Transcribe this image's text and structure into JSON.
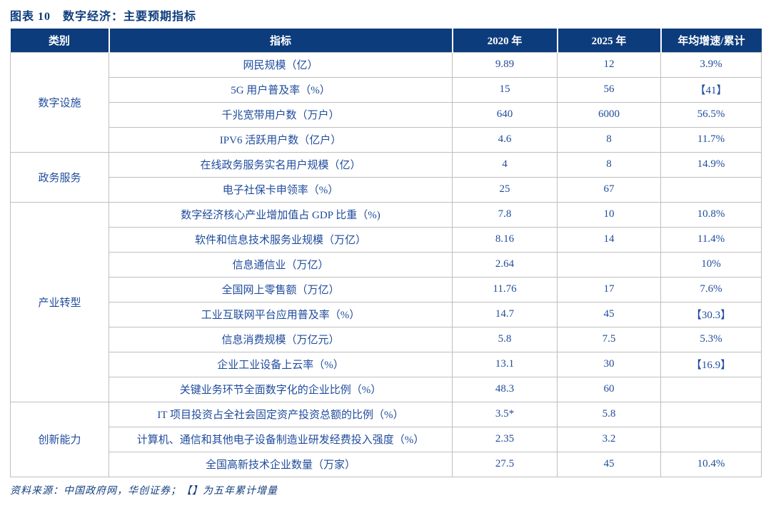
{
  "page": {
    "title": "图表 10　数字经济：主要预期指标",
    "source_note": "资料来源：中国政府网，华创证券；【】为五年累计增量"
  },
  "colors": {
    "header_bg": "#0d3c7c",
    "header_text": "#ffffff",
    "body_text": "#1f4c9c",
    "title_text": "#0d3c7c",
    "border": "#bfbfbf"
  },
  "table": {
    "headers": [
      "类别",
      "指标",
      "2020 年",
      "2025 年",
      "年均增速/累计"
    ],
    "groups": [
      {
        "category": "数字设施",
        "rows": [
          {
            "indicator": "网民规模（亿）",
            "y2020": "9.89",
            "y2025": "12",
            "growth": "3.9%"
          },
          {
            "indicator": "5G 用户普及率（%）",
            "y2020": "15",
            "y2025": "56",
            "growth": "【41】"
          },
          {
            "indicator": "千兆宽带用户数（万户）",
            "y2020": "640",
            "y2025": "6000",
            "growth": "56.5%"
          },
          {
            "indicator": "IPV6 活跃用户数（亿户）",
            "y2020": "4.6",
            "y2025": "8",
            "growth": "11.7%"
          }
        ]
      },
      {
        "category": "政务服务",
        "rows": [
          {
            "indicator": "在线政务服务实名用户规模（亿）",
            "y2020": "4",
            "y2025": "8",
            "growth": "14.9%"
          },
          {
            "indicator": "电子社保卡申领率（%）",
            "y2020": "25",
            "y2025": "67",
            "growth": ""
          }
        ]
      },
      {
        "category": "产业转型",
        "rows": [
          {
            "indicator": "数字经济核心产业增加值占 GDP 比重（%)",
            "y2020": "7.8",
            "y2025": "10",
            "growth": "10.8%"
          },
          {
            "indicator": "软件和信息技术服务业规模（万亿）",
            "y2020": "8.16",
            "y2025": "14",
            "growth": "11.4%"
          },
          {
            "indicator": "信息通信业（万亿）",
            "y2020": "2.64",
            "y2025": "",
            "growth": "10%"
          },
          {
            "indicator": "全国网上零售额（万亿）",
            "y2020": "11.76",
            "y2025": "17",
            "growth": "7.6%"
          },
          {
            "indicator": "工业互联网平台应用普及率（%）",
            "y2020": "14.7",
            "y2025": "45",
            "growth": "【30.3】"
          },
          {
            "indicator": "信息消费规模（万亿元）",
            "y2020": "5.8",
            "y2025": "7.5",
            "growth": "5.3%"
          },
          {
            "indicator": "企业工业设备上云率（%）",
            "y2020": "13.1",
            "y2025": "30",
            "growth": "【16.9】"
          },
          {
            "indicator": "关键业务环节全面数字化的企业比例（%）",
            "y2020": "48.3",
            "y2025": "60",
            "growth": ""
          }
        ]
      },
      {
        "category": "创新能力",
        "rows": [
          {
            "indicator": "IT 项目投资占全社会固定资产投资总额的比例（%）",
            "y2020": "3.5*",
            "y2025": "5.8",
            "growth": ""
          },
          {
            "indicator": "计算机、通信和其他电子设备制造业研发经费投入强度（%）",
            "y2020": "2.35",
            "y2025": "3.2",
            "growth": ""
          },
          {
            "indicator": "全国高新技术企业数量（万家）",
            "y2020": "27.5",
            "y2025": "45",
            "growth": "10.4%"
          }
        ]
      }
    ]
  }
}
